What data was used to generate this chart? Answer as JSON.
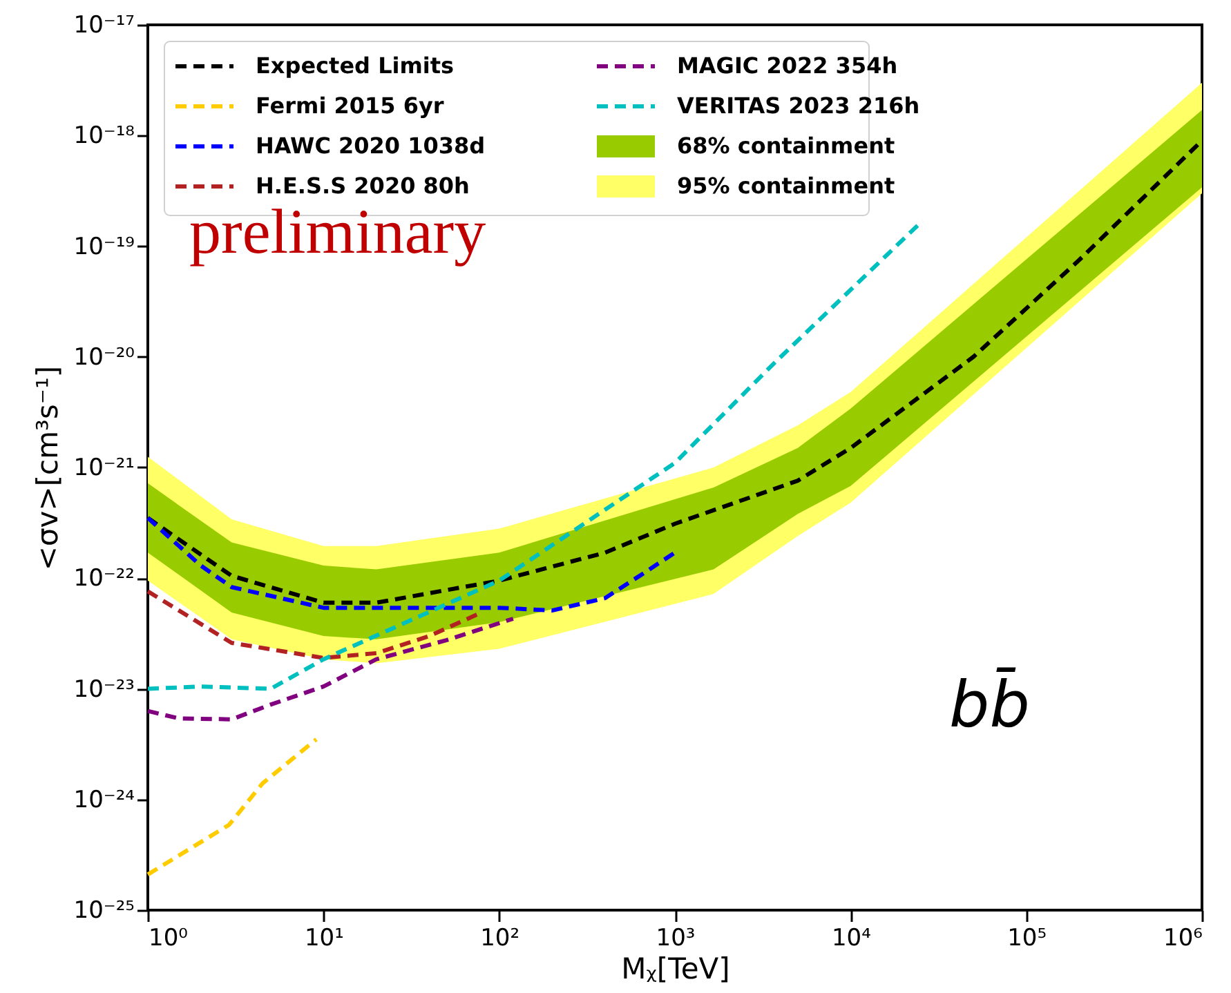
{
  "chart_data": {
    "type": "line",
    "xlabel": "Mᵪ[TeV]",
    "ylabel": "<σv>[cm³s⁻¹]",
    "annotations": [
      "preliminary",
      "bb̄"
    ],
    "log": "xy",
    "grid": false,
    "legend": "top left",
    "line_style": "dashed",
    "marker": "none",
    "xlim": [
      1,
      1000000
    ],
    "ylim": [
      1e-25,
      1e-17
    ],
    "xticks": [
      {
        "value": 1,
        "label": "10⁰"
      },
      {
        "value": 10,
        "label": "10¹"
      },
      {
        "value": 100,
        "label": "10²"
      },
      {
        "value": 1000,
        "label": "10³"
      },
      {
        "value": 10000,
        "label": "10⁴"
      },
      {
        "value": 100000,
        "label": "10⁵"
      },
      {
        "value": 1000000,
        "label": "10⁶"
      }
    ],
    "yticks": [
      {
        "value": 1e-25,
        "label": "10⁻²⁵"
      },
      {
        "value": 1e-24,
        "label": "10⁻²⁴"
      },
      {
        "value": 1e-23,
        "label": "10⁻²³"
      },
      {
        "value": 1e-22,
        "label": "10⁻²²"
      },
      {
        "value": 1e-21,
        "label": "10⁻²¹"
      },
      {
        "value": 1e-20,
        "label": "10⁻²⁰"
      },
      {
        "value": 1e-19,
        "label": "10⁻¹⁹"
      },
      {
        "value": 1e-18,
        "label": "10⁻¹⁸"
      },
      {
        "value": 1e-17,
        "label": "10⁻¹⁷"
      }
    ],
    "series": [
      {
        "name": "Expected Limits",
        "color": "#000000",
        "x": [
          1,
          3,
          10,
          20,
          100,
          400,
          1000,
          5000,
          10000,
          50000,
          200000,
          1000000
        ],
        "values": [
          3.5e-22,
          1.05e-22,
          6e-23,
          6e-23,
          9.5e-23,
          1.7e-22,
          3.1e-22,
          7.6e-22,
          1.5e-21,
          1e-20,
          7.5e-20,
          9e-19
        ]
      },
      {
        "name": "Fermi 2015 6yr",
        "color": "#ffcc00",
        "x": [
          1,
          2.9,
          4.5,
          9.1
        ],
        "values": [
          2.1e-25,
          5.9e-25,
          1.4e-24,
          3.5e-24
        ]
      },
      {
        "name": "HAWC 2020 1038d",
        "color": "#0000ff",
        "x": [
          1,
          2,
          3,
          10,
          100,
          200,
          400,
          630,
          1000
        ],
        "values": [
          3.5e-22,
          1.3e-22,
          8.3e-23,
          5.4e-23,
          5.4e-23,
          5.1e-23,
          6.6e-23,
          1.05e-22,
          1.7e-22
        ]
      },
      {
        "name": "H.E.S.S 2020 80h",
        "color": "#b22222",
        "x": [
          1,
          3,
          10,
          20,
          40,
          75
        ],
        "values": [
          7.6e-23,
          2.6e-23,
          1.9e-23,
          2.1e-23,
          3e-23,
          4.7e-23
        ]
      },
      {
        "name": "MAGIC 2022 354h",
        "color": "#800080",
        "x": [
          1,
          1.5,
          3,
          5,
          10,
          20,
          50,
          120
        ],
        "values": [
          6.3e-24,
          5.4e-24,
          5.3e-24,
          7.2e-24,
          1.05e-23,
          1.85e-23,
          2.75e-23,
          4.3e-23
        ]
      },
      {
        "name": "VERITAS 2023 216h",
        "color": "#00bfbf",
        "x": [
          1,
          2,
          5,
          10,
          100,
          1000,
          3600,
          25700
        ],
        "values": [
          1e-23,
          1.05e-23,
          1e-23,
          1.85e-23,
          9.5e-23,
          1.1e-21,
          8.5e-21,
          1.7e-19
        ]
      },
      {
        "name": "68% containment",
        "color": "#99cc00",
        "x": [
          1,
          3,
          10,
          20,
          100,
          1660,
          5000,
          10000,
          1000000
        ],
        "values": [
          null,
          null,
          null,
          null,
          null,
          null,
          null,
          null,
          null
        ],
        "lower": [
          1.7e-22,
          4.9e-23,
          3e-23,
          2.8e-23,
          4e-23,
          1.2e-22,
          3.8e-22,
          6.8e-22,
          3.4e-19
        ],
        "upper": [
          7.2e-22,
          2.1e-22,
          1.3e-22,
          1.2e-22,
          1.7e-22,
          6.6e-22,
          1.5e-21,
          3.4e-21,
          1.7e-18
        ]
      },
      {
        "name": "95% containment",
        "color": "#ffff66",
        "x": [
          1,
          3,
          10,
          20,
          100,
          1660,
          5000,
          10000,
          1000000
        ],
        "values": [
          null,
          null,
          null,
          null,
          null,
          null,
          null,
          null,
          null
        ],
        "lower": [
          9.5e-23,
          2.8e-23,
          1.85e-23,
          1.7e-23,
          2.3e-23,
          7.2e-23,
          2.4e-22,
          4.8e-22,
          3e-19
        ],
        "upper": [
          1.25e-21,
          3.4e-22,
          1.95e-22,
          1.95e-22,
          2.8e-22,
          1e-21,
          2.4e-21,
          4.8e-21,
          3e-18
        ]
      }
    ]
  }
}
